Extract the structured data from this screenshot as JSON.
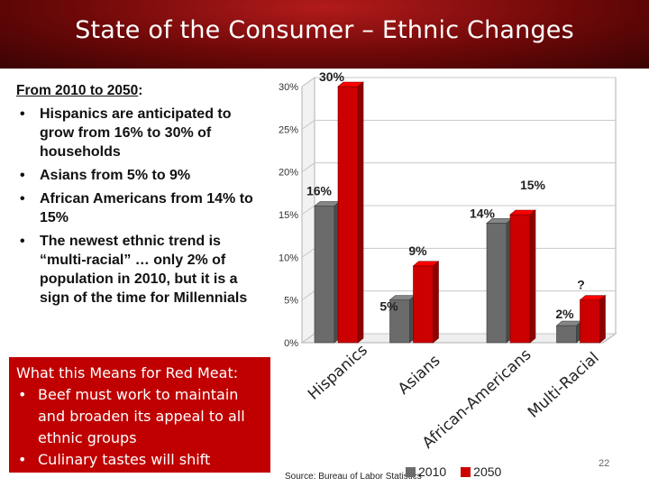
{
  "slide": {
    "title": "State of the Consumer – Ethnic Changes",
    "page_number": "22",
    "source": "Source: Bureau of Labor Statistics",
    "intro": {
      "label": "From 2010 to 2050",
      "suffix": ":"
    },
    "bullets": [
      "Hispanics are anticipated to grow from 16% to 30% of households",
      "Asians from 5% to 9%",
      "African Americans from 14% to 15%",
      "The newest ethnic trend is “multi-racial” … only 2% of population in 2010, but it is a sign of the time for Millennials"
    ],
    "red_box": {
      "heading": "What this Means for Red Meat:",
      "bullets": [
        "Beef must work to maintain and broaden its appeal to all ethnic groups",
        "Culinary tastes will shift"
      ]
    }
  },
  "chart_data": {
    "type": "bar",
    "categories": [
      "Hispanics",
      "Asians",
      "African-Americans",
      "Multi-Racial"
    ],
    "series": [
      {
        "name": "2010",
        "values": [
          16,
          5,
          14,
          2
        ],
        "color": "#6b6b6b"
      },
      {
        "name": "2050",
        "values": [
          30,
          9,
          15,
          null
        ],
        "color": "#cc0000"
      }
    ],
    "data_labels": {
      "2010": [
        "16%",
        "5%",
        "14%",
        "2%"
      ],
      "2050": [
        "30%",
        "9%",
        "15%",
        "?"
      ]
    },
    "yticks": [
      "0%",
      "5%",
      "10%",
      "15%",
      "20%",
      "25%",
      "30%"
    ],
    "ylim": [
      0,
      30
    ],
    "legend_position": "bottom",
    "style": "3d-columns",
    "multi_racial_2050_drawn_value": 5
  }
}
